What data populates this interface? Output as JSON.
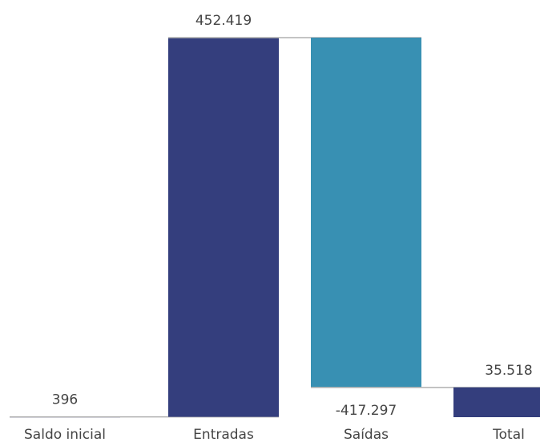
{
  "chart_data": {
    "type": "waterfall",
    "categories": [
      "Saldo inicial",
      "Entradas",
      "Saídas",
      "Total"
    ],
    "values": [
      396,
      452419,
      -417297,
      35518
    ],
    "value_labels": [
      "396",
      "452.419",
      "-417.297",
      "35.518"
    ],
    "kinds": [
      "total",
      "increase",
      "decrease",
      "total"
    ],
    "ylim": [
      0,
      452815
    ],
    "grid": false,
    "legend": "none",
    "colors": {
      "total": "#343e7d",
      "increase": "#343e7d",
      "decrease": "#3890b3",
      "connector": "#b0b0b0",
      "label": "#444444"
    }
  }
}
